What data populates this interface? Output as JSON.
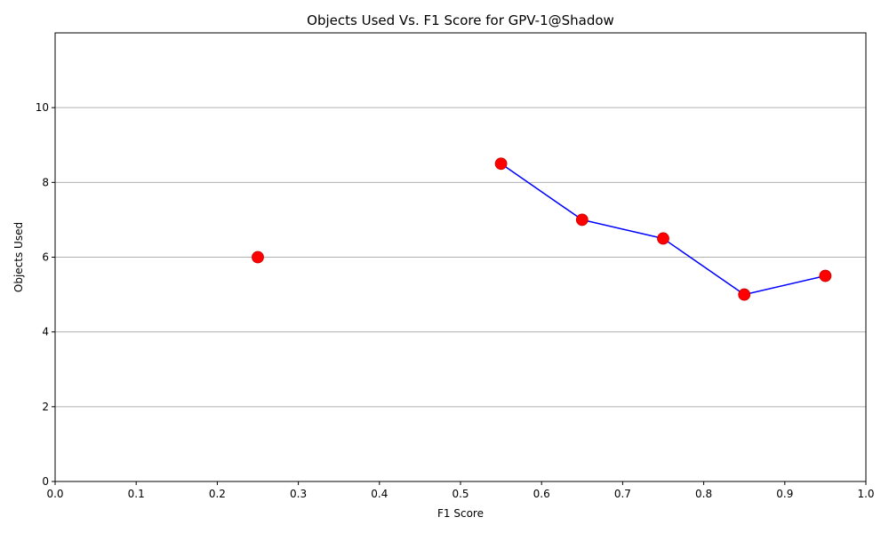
{
  "chart_data": {
    "type": "line",
    "title": "Objects Used Vs. F1 Score for GPV-1@Shadow",
    "xlabel": "F1 Score",
    "ylabel": "Objects Used",
    "xlim": [
      0.0,
      1.0
    ],
    "ylim": [
      0,
      12
    ],
    "x_ticks": [
      "0.0",
      "0.1",
      "0.2",
      "0.3",
      "0.4",
      "0.5",
      "0.6",
      "0.7",
      "0.8",
      "0.9",
      "1.0"
    ],
    "y_ticks": [
      "0",
      "2",
      "4",
      "6",
      "8",
      "10"
    ],
    "grid": "horizontal",
    "legend": "none",
    "line_color": "#0000ff",
    "marker_color": "#ff0000",
    "points": [
      {
        "x": 0.25,
        "y": 6.0
      },
      {
        "x": 0.55,
        "y": 8.5
      },
      {
        "x": 0.65,
        "y": 7.0
      },
      {
        "x": 0.75,
        "y": 6.5
      },
      {
        "x": 0.85,
        "y": 5.0
      },
      {
        "x": 0.95,
        "y": 5.5
      }
    ],
    "line_segments": [
      [
        1,
        2
      ],
      [
        2,
        3
      ],
      [
        3,
        4
      ],
      [
        4,
        5
      ]
    ]
  }
}
